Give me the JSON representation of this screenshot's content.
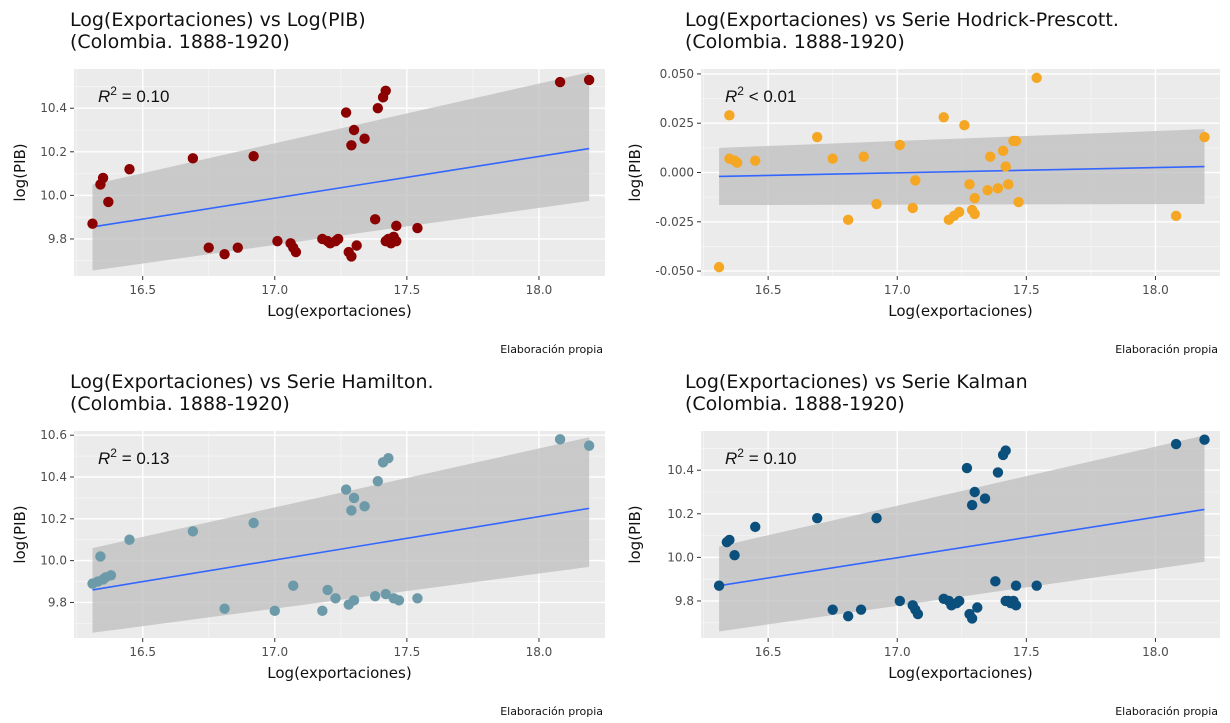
{
  "chart_data": [
    {
      "type": "scatter",
      "title_line1": "Log(Exportaciones) vs Log(PIB)",
      "title_line2": "(Colombia. 1888-1920)",
      "xlabel": "Log(exportaciones)",
      "ylabel": "log(PIB)",
      "caption": "Elaboración propia",
      "annotation": {
        "prefix": "R",
        "sup": "2",
        "suffix": " = 0.10"
      },
      "xlim": [
        16.24,
        18.25
      ],
      "ylim": [
        9.63,
        10.58
      ],
      "xticks": [
        16.5,
        17.0,
        17.5,
        18.0
      ],
      "xtick_labels": [
        "16.5",
        "17.0",
        "17.5",
        "18.0"
      ],
      "yticks": [
        9.8,
        10.0,
        10.2,
        10.4
      ],
      "ytick_labels": [
        "9.8",
        "10.0",
        "10.2",
        "10.4"
      ],
      "point_color": "#8b0000",
      "trend": {
        "x": [
          16.31,
          18.19
        ],
        "y": [
          9.855,
          10.215
        ]
      },
      "band": {
        "upper": [
          10.05,
          10.565
        ],
        "lower": [
          9.655,
          9.975
        ]
      },
      "points": {
        "x": [
          16.31,
          16.34,
          16.35,
          16.37,
          16.45,
          16.69,
          16.75,
          16.81,
          16.86,
          16.92,
          17.01,
          17.06,
          17.07,
          17.08,
          17.18,
          17.2,
          17.21,
          17.23,
          17.24,
          17.27,
          17.28,
          17.29,
          17.29,
          17.3,
          17.31,
          17.34,
          17.38,
          17.39,
          17.41,
          17.42,
          17.42,
          17.43,
          17.44,
          17.45,
          17.46,
          17.46,
          17.54,
          18.08,
          18.19
        ],
        "y": [
          9.87,
          10.05,
          10.08,
          9.97,
          10.12,
          10.17,
          9.76,
          9.73,
          9.76,
          10.18,
          9.79,
          9.78,
          9.76,
          9.74,
          9.8,
          9.79,
          9.78,
          9.79,
          9.8,
          10.38,
          9.74,
          9.72,
          10.23,
          10.3,
          9.77,
          10.26,
          9.89,
          10.4,
          10.45,
          9.79,
          10.48,
          9.8,
          9.78,
          9.81,
          9.79,
          9.86,
          9.85,
          10.52,
          10.53
        ]
      }
    },
    {
      "type": "scatter",
      "title_line1": "Log(Exportaciones) vs Serie Hodrick-Prescott.",
      "title_line2": "(Colombia. 1888-1920)",
      "xlabel": "Log(exportaciones)",
      "ylabel": "log(PIB)",
      "caption": "Elaboración propia",
      "annotation": {
        "prefix": "R",
        "sup": "2",
        "suffix": " < 0.01"
      },
      "xlim": [
        16.24,
        18.25
      ],
      "ylim": [
        -0.0525,
        0.0525
      ],
      "xticks": [
        16.5,
        17.0,
        17.5,
        18.0
      ],
      "xtick_labels": [
        "16.5",
        "17.0",
        "17.5",
        "18.0"
      ],
      "yticks": [
        -0.05,
        -0.025,
        0.0,
        0.025,
        0.05
      ],
      "ytick_labels": [
        "-0.050",
        "-0.025",
        "0.000",
        "0.025",
        "0.050"
      ],
      "point_color": "#f5a623",
      "trend": {
        "x": [
          16.31,
          18.19
        ],
        "y": [
          -0.002,
          0.003
        ]
      },
      "band": {
        "upper": [
          0.0125,
          0.022
        ],
        "lower": [
          -0.0165,
          -0.016
        ]
      },
      "points": {
        "x": [
          16.31,
          16.35,
          16.35,
          16.37,
          16.38,
          16.45,
          16.69,
          16.75,
          16.81,
          16.87,
          16.92,
          17.01,
          17.06,
          17.07,
          17.18,
          17.2,
          17.22,
          17.24,
          17.26,
          17.28,
          17.29,
          17.3,
          17.3,
          17.35,
          17.36,
          17.39,
          17.41,
          17.42,
          17.43,
          17.45,
          17.46,
          17.47,
          17.54,
          18.08,
          18.19
        ],
        "y": [
          -0.048,
          0.029,
          0.007,
          0.006,
          0.005,
          0.006,
          0.018,
          0.007,
          -0.024,
          0.008,
          -0.016,
          0.014,
          -0.018,
          -0.004,
          0.028,
          -0.024,
          -0.022,
          -0.02,
          0.024,
          -0.006,
          -0.019,
          -0.013,
          -0.021,
          -0.009,
          0.008,
          -0.008,
          0.011,
          0.003,
          -0.006,
          0.016,
          0.016,
          -0.015,
          0.048,
          -0.022,
          0.018
        ]
      }
    },
    {
      "type": "scatter",
      "title_line1": "Log(Exportaciones) vs Serie Hamilton.",
      "title_line2": "(Colombia. 1888-1920)",
      "xlabel": "Log(exportaciones)",
      "ylabel": "log(PIB)",
      "caption": "Elaboración propia",
      "annotation": {
        "prefix": "R",
        "sup": "2",
        "suffix": " = 0.13"
      },
      "xlim": [
        16.24,
        18.25
      ],
      "ylim": [
        9.63,
        10.62
      ],
      "xticks": [
        16.5,
        17.0,
        17.5,
        18.0
      ],
      "xtick_labels": [
        "16.5",
        "17.0",
        "17.5",
        "18.0"
      ],
      "yticks": [
        9.8,
        10.0,
        10.2,
        10.4,
        10.6
      ],
      "ytick_labels": [
        "9.8",
        "10.0",
        "10.2",
        "10.4",
        "10.6"
      ],
      "point_color": "#6d9aa8",
      "trend": {
        "x": [
          16.31,
          18.19
        ],
        "y": [
          9.86,
          10.25
        ]
      },
      "band": {
        "upper": [
          10.06,
          10.59
        ],
        "lower": [
          9.655,
          9.97
        ]
      },
      "points": {
        "x": [
          16.31,
          16.33,
          16.34,
          16.35,
          16.36,
          16.38,
          16.45,
          16.69,
          16.81,
          16.92,
          17.0,
          17.07,
          17.18,
          17.2,
          17.23,
          17.27,
          17.28,
          17.29,
          17.3,
          17.3,
          17.34,
          17.38,
          17.39,
          17.41,
          17.42,
          17.43,
          17.45,
          17.47,
          17.54,
          18.08,
          18.19
        ],
        "y": [
          9.89,
          9.9,
          10.02,
          9.91,
          9.92,
          9.93,
          10.1,
          10.14,
          9.77,
          10.18,
          9.76,
          9.88,
          9.76,
          9.86,
          9.82,
          10.34,
          9.79,
          10.24,
          10.3,
          9.81,
          10.26,
          9.83,
          10.38,
          10.47,
          9.84,
          10.49,
          9.82,
          9.81,
          9.82,
          10.58,
          10.55
        ]
      }
    },
    {
      "type": "scatter",
      "title_line1": "Log(Exportaciones) vs Serie Kalman",
      "title_line2": "(Colombia. 1888-1920)",
      "xlabel": "Log(exportaciones)",
      "ylabel": "log(PIB)",
      "caption": "Elaboración propia",
      "annotation": {
        "prefix": "R",
        "sup": "2",
        "suffix": " = 0.10"
      },
      "xlim": [
        16.24,
        18.25
      ],
      "ylim": [
        9.63,
        10.58
      ],
      "xticks": [
        16.5,
        17.0,
        17.5,
        18.0
      ],
      "xtick_labels": [
        "16.5",
        "17.0",
        "17.5",
        "18.0"
      ],
      "yticks": [
        9.8,
        10.0,
        10.2,
        10.4
      ],
      "ytick_labels": [
        "9.8",
        "10.0",
        "10.2",
        "10.4"
      ],
      "point_color": "#0b4f7d",
      "trend": {
        "x": [
          16.31,
          18.19
        ],
        "y": [
          9.87,
          10.22
        ]
      },
      "band": {
        "upper": [
          10.05,
          10.56
        ],
        "lower": [
          9.66,
          9.98
        ]
      },
      "points": {
        "x": [
          16.31,
          16.34,
          16.35,
          16.37,
          16.45,
          16.69,
          16.75,
          16.81,
          16.86,
          16.92,
          17.01,
          17.06,
          17.07,
          17.08,
          17.18,
          17.2,
          17.21,
          17.23,
          17.24,
          17.27,
          17.28,
          17.29,
          17.29,
          17.3,
          17.31,
          17.34,
          17.38,
          17.39,
          17.41,
          17.42,
          17.42,
          17.43,
          17.44,
          17.45,
          17.46,
          17.46,
          17.54,
          18.08,
          18.19
        ],
        "y": [
          9.87,
          10.07,
          10.08,
          10.01,
          10.14,
          10.18,
          9.76,
          9.73,
          9.76,
          10.18,
          9.8,
          9.78,
          9.76,
          9.74,
          9.81,
          9.8,
          9.78,
          9.79,
          9.8,
          10.41,
          9.74,
          9.72,
          10.24,
          10.3,
          9.77,
          10.27,
          9.89,
          10.39,
          10.47,
          9.8,
          10.49,
          9.8,
          9.79,
          9.8,
          9.78,
          9.87,
          9.87,
          10.52,
          10.54
        ]
      }
    }
  ]
}
